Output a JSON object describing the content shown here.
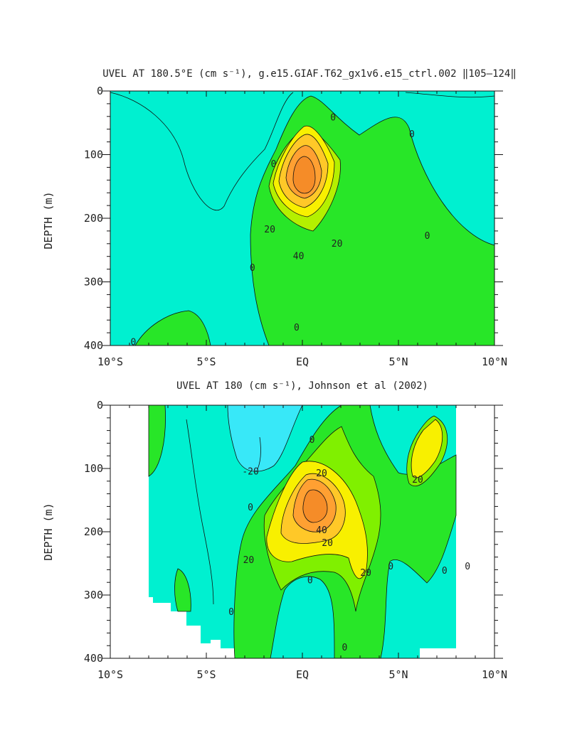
{
  "chart_data": [
    {
      "type": "contour",
      "title": "UVEL AT 180.5°E (cm s⁻¹), g.e15.GIAF.T62_gx1v6.e15_ctrl.002 ‖105–124‖",
      "xlabel": "",
      "ylabel": "DEPTH (m)",
      "xlim": [
        -10,
        10
      ],
      "ylim": [
        400,
        0
      ],
      "x_ticks": [
        "10°S",
        "5°S",
        "EQ",
        "5°N",
        "10°N"
      ],
      "y_ticks": [
        "0",
        "100",
        "200",
        "300",
        "400"
      ],
      "contour_labels": [
        {
          "text": "0",
          "x": 1.6,
          "y": 42
        },
        {
          "text": "0",
          "x": 5.7,
          "y": 68
        },
        {
          "text": "0",
          "x": -1.5,
          "y": 115
        },
        {
          "text": "20",
          "x": -1.7,
          "y": 218
        },
        {
          "text": "40",
          "x": -0.2,
          "y": 260
        },
        {
          "text": "20",
          "x": 1.8,
          "y": 240
        },
        {
          "text": "0",
          "x": 6.5,
          "y": 228
        },
        {
          "text": "0",
          "x": -2.6,
          "y": 278
        },
        {
          "text": "0",
          "x": -0.3,
          "y": 372
        },
        {
          "text": "0",
          "x": -8.8,
          "y": 395
        }
      ],
      "colors": {
        "neg": "#00f0d0",
        "pos0": "#28e628",
        "pos10": "#b4f000",
        "pos20": "#f8f000",
        "pos30": "#ffc828",
        "pos40": "#ffa032",
        "pos50": "#f58c28"
      }
    },
    {
      "type": "contour",
      "title": "UVEL AT 180 (cm s⁻¹), Johnson et al (2002)",
      "xlabel": "",
      "ylabel": "DEPTH (m)",
      "xlim": [
        -10,
        10
      ],
      "ylim": [
        400,
        0
      ],
      "x_ticks": [
        "10°S",
        "5°S",
        "EQ",
        "5°N",
        "10°N"
      ],
      "y_ticks": [
        "0",
        "100",
        "200",
        "300",
        "400"
      ],
      "contour_labels": [
        {
          "text": "-20",
          "x": -2.7,
          "y": 105
        },
        {
          "text": "0",
          "x": 0.5,
          "y": 55
        },
        {
          "text": "20",
          "x": 1.0,
          "y": 108
        },
        {
          "text": "0",
          "x": -2.7,
          "y": 162
        },
        {
          "text": "40",
          "x": 1.0,
          "y": 198
        },
        {
          "text": "20",
          "x": 1.3,
          "y": 218
        },
        {
          "text": "20",
          "x": -2.8,
          "y": 245
        },
        {
          "text": "20",
          "x": 3.3,
          "y": 265
        },
        {
          "text": "20",
          "x": 6.0,
          "y": 118
        },
        {
          "text": "0",
          "x": 0.4,
          "y": 277
        },
        {
          "text": "0",
          "x": 4.6,
          "y": 255
        },
        {
          "text": "0",
          "x": 7.4,
          "y": 262
        },
        {
          "text": "0",
          "x": 8.6,
          "y": 255
        },
        {
          "text": "0",
          "x": -3.7,
          "y": 327
        },
        {
          "text": "0",
          "x": 2.2,
          "y": 383
        }
      ],
      "colors": {
        "neg20": "#38e8f8",
        "neg": "#00f0d0",
        "pos0": "#28e628",
        "pos10": "#80f000",
        "pos20": "#f8f000",
        "pos30": "#ffc828",
        "pos40": "#ffa032",
        "pos50": "#f58c28"
      }
    }
  ]
}
